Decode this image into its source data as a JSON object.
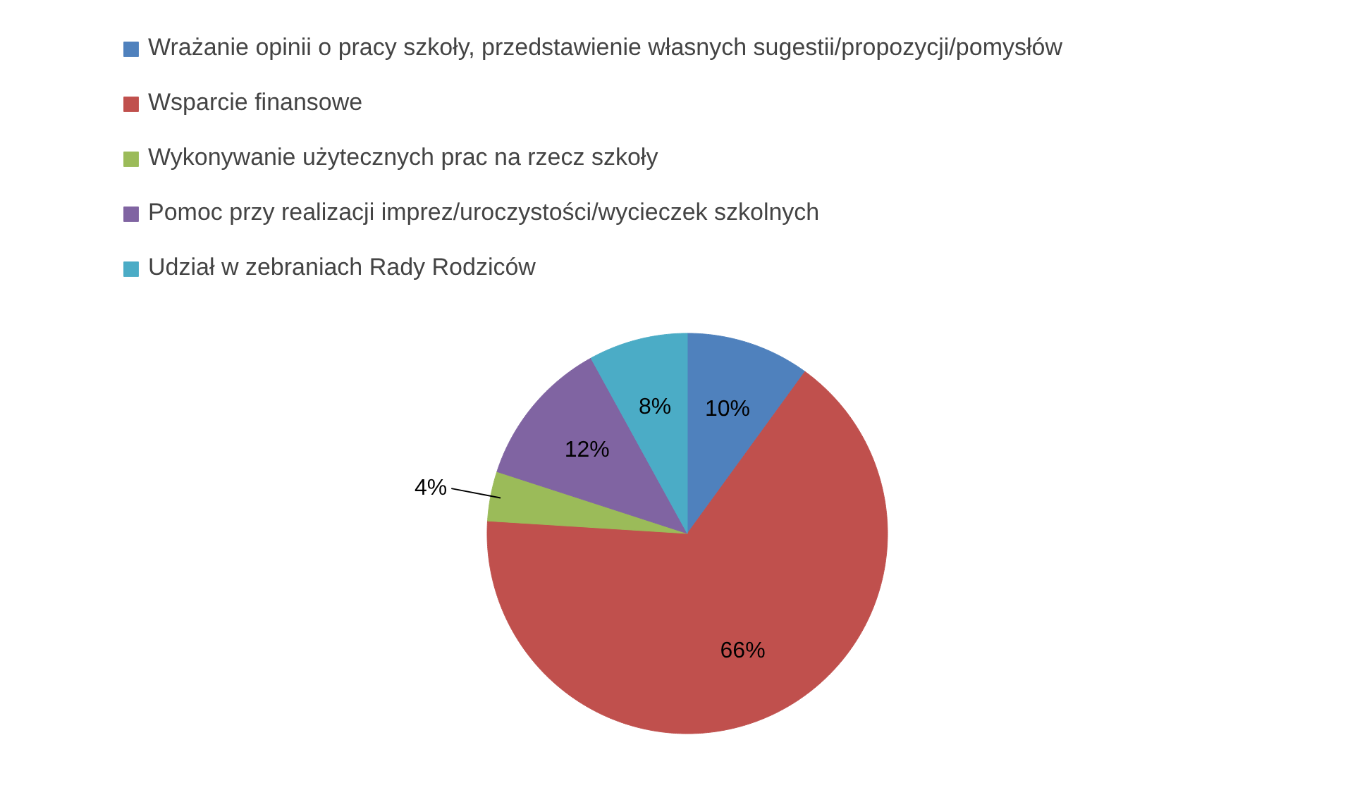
{
  "chart_data": {
    "type": "pie",
    "categories": [
      "Wrażanie opinii o pracy szkoły, przedstawienie własnych sugestii/propozycji/pomysłów",
      "Wsparcie finansowe",
      "Wykonywanie użytecznych prac na rzecz szkoły",
      "Pomoc przy realizacji imprez/uroczystości/wycieczek szkolnych",
      "Udział w zebraniach Rady Rodziców"
    ],
    "values": [
      10,
      66,
      4,
      12,
      8
    ],
    "colors": [
      "#4f81bd",
      "#c0504d",
      "#9bbb59",
      "#8064a2",
      "#4bacc6"
    ],
    "value_labels": [
      "10%",
      "66%",
      "4%",
      "12%",
      "8%"
    ],
    "legend": "top"
  }
}
